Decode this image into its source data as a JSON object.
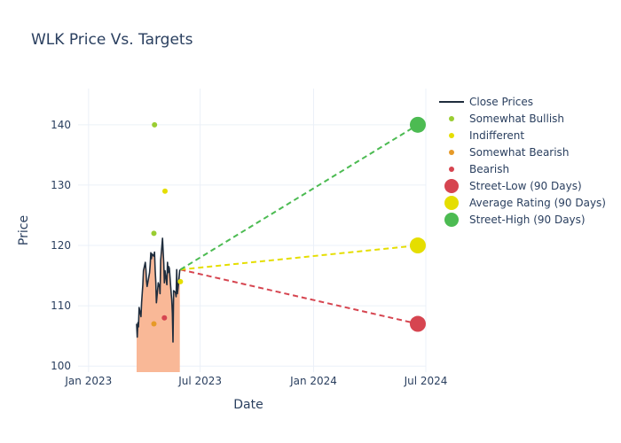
{
  "chart_data": {
    "type": "line",
    "title": "WLK Price Vs. Targets",
    "xlabel": "Date",
    "ylabel": "Price",
    "xlim": [
      "2022-12-15",
      "2024-07-01"
    ],
    "ylim": [
      99,
      146
    ],
    "x_ticks": [
      {
        "date": "2023-01-01",
        "label": "Jan 2023"
      },
      {
        "date": "2023-07-01",
        "label": "Jul 2023"
      },
      {
        "date": "2024-01-01",
        "label": "Jan 2024"
      },
      {
        "date": "2024-07-01",
        "label": "Jul 2024"
      }
    ],
    "y_ticks": [
      100,
      110,
      120,
      130,
      140
    ],
    "grid": true,
    "legend_position": "top-right",
    "close_prices": {
      "name": "Close Prices",
      "color": "#1f2d3d",
      "fill_color": "#f9b897",
      "points": [
        [
          "2023-03-20",
          107.0
        ],
        [
          "2023-03-21",
          104.8
        ],
        [
          "2023-03-22",
          107.2
        ],
        [
          "2023-03-23",
          106.5
        ],
        [
          "2023-03-24",
          109.7
        ],
        [
          "2023-03-27",
          108.2
        ],
        [
          "2023-03-28",
          110.5
        ],
        [
          "2023-03-29",
          112.0
        ],
        [
          "2023-03-30",
          113.5
        ],
        [
          "2023-03-31",
          115.8
        ],
        [
          "2023-04-03",
          117.2
        ],
        [
          "2023-04-04",
          116.0
        ],
        [
          "2023-04-05",
          114.2
        ],
        [
          "2023-04-06",
          113.2
        ],
        [
          "2023-04-10",
          115.5
        ],
        [
          "2023-04-11",
          116.8
        ],
        [
          "2023-04-12",
          118.8
        ],
        [
          "2023-04-13",
          117.8
        ],
        [
          "2023-04-14",
          118.6
        ],
        [
          "2023-04-17",
          118.2
        ],
        [
          "2023-04-18",
          118.9
        ],
        [
          "2023-04-19",
          116.0
        ],
        [
          "2023-04-20",
          114.0
        ],
        [
          "2023-04-21",
          110.5
        ],
        [
          "2023-04-24",
          113.8
        ],
        [
          "2023-04-25",
          113.2
        ],
        [
          "2023-04-26",
          113.5
        ],
        [
          "2023-04-27",
          112.0
        ],
        [
          "2023-04-28",
          117.5
        ],
        [
          "2023-05-01",
          121.2
        ],
        [
          "2023-05-02",
          119.0
        ],
        [
          "2023-05-03",
          117.0
        ],
        [
          "2023-05-04",
          113.8
        ],
        [
          "2023-05-05",
          115.8
        ],
        [
          "2023-05-08",
          113.5
        ],
        [
          "2023-05-09",
          117.2
        ],
        [
          "2023-05-10",
          115.5
        ],
        [
          "2023-05-11",
          116.5
        ],
        [
          "2023-05-12",
          116.2
        ],
        [
          "2023-05-15",
          112.0
        ],
        [
          "2023-05-16",
          111.0
        ],
        [
          "2023-05-17",
          108.8
        ],
        [
          "2023-05-18",
          104.0
        ],
        [
          "2023-05-19",
          112.5
        ],
        [
          "2023-05-22",
          112.2
        ],
        [
          "2023-05-23",
          111.5
        ],
        [
          "2023-05-24",
          116.0
        ],
        [
          "2023-05-25",
          112.0
        ],
        [
          "2023-05-26",
          112.8
        ],
        [
          "2023-05-29",
          116.0
        ]
      ]
    },
    "analyst_ratings": [
      {
        "name": "Somewhat Bullish",
        "color": "#9acd32",
        "points": [
          [
            "2023-04-18",
            140
          ],
          [
            "2023-04-17",
            122
          ]
        ]
      },
      {
        "name": "Indifferent",
        "color": "#e5de00",
        "points": [
          [
            "2023-05-05",
            129
          ],
          [
            "2023-05-30",
            114
          ]
        ]
      },
      {
        "name": "Somewhat Bearish",
        "color": "#e69a28",
        "points": [
          [
            "2023-04-17",
            107
          ]
        ]
      },
      {
        "name": "Bearish",
        "color": "#d64550",
        "points": [
          [
            "2023-05-04",
            108
          ]
        ]
      }
    ],
    "targets": [
      {
        "name": "Street-Low (90 Days)",
        "color": "#d64550",
        "value": 107,
        "date": "2024-06-18"
      },
      {
        "name": "Average Rating (90 Days)",
        "color": "#e5de00",
        "value": 120,
        "date": "2024-06-18"
      },
      {
        "name": "Street-High (90 Days)",
        "color": "#4cbb52",
        "value": 140,
        "date": "2024-06-18"
      }
    ],
    "projection_start": {
      "date": "2023-05-30",
      "value": 116
    }
  }
}
